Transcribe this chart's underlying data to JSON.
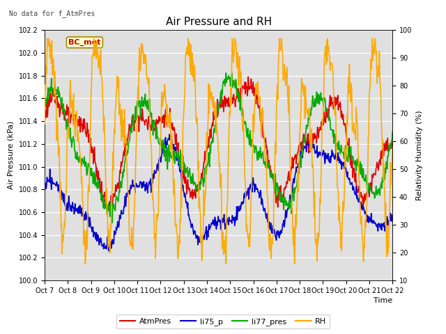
{
  "title": "Air Pressure and RH",
  "note": "No data for f_AtmPres",
  "box_label": "BC_met",
  "ylabel_left": "Air Pressure (kPa)",
  "ylabel_right": "Relativity Humidity (%)",
  "xlabel": "Time",
  "ylim_left": [
    100.0,
    102.2
  ],
  "ylim_right": [
    10,
    100
  ],
  "yticks_left": [
    100.0,
    100.2,
    100.4,
    100.6,
    100.8,
    101.0,
    101.2,
    101.4,
    101.6,
    101.8,
    102.0,
    102.2
  ],
  "yticks_right": [
    10,
    20,
    30,
    40,
    50,
    60,
    70,
    80,
    90,
    100
  ],
  "xtick_labels": [
    "Oct 7",
    "Oct 8",
    "Oct 9",
    "Oct 10",
    "Oct 11",
    "Oct 12",
    "Oct 13",
    "Oct 14",
    "Oct 15",
    "Oct 16",
    "Oct 17",
    "Oct 18",
    "Oct 19",
    "Oct 20",
    "Oct 21",
    "Oct 22"
  ],
  "legend_labels": [
    "AtmPres",
    "li75_p",
    "li77_pres",
    "RH"
  ],
  "legend_colors": [
    "#dd0000",
    "#0000cc",
    "#00aa00",
    "#ffaa00"
  ],
  "bg_color": "#e0e0e0",
  "fig_bg": "#ffffff",
  "line_width": 1.2,
  "title_fontsize": 11,
  "axis_fontsize": 8,
  "tick_fontsize": 7,
  "note_fontsize": 7,
  "legend_fontsize": 8
}
